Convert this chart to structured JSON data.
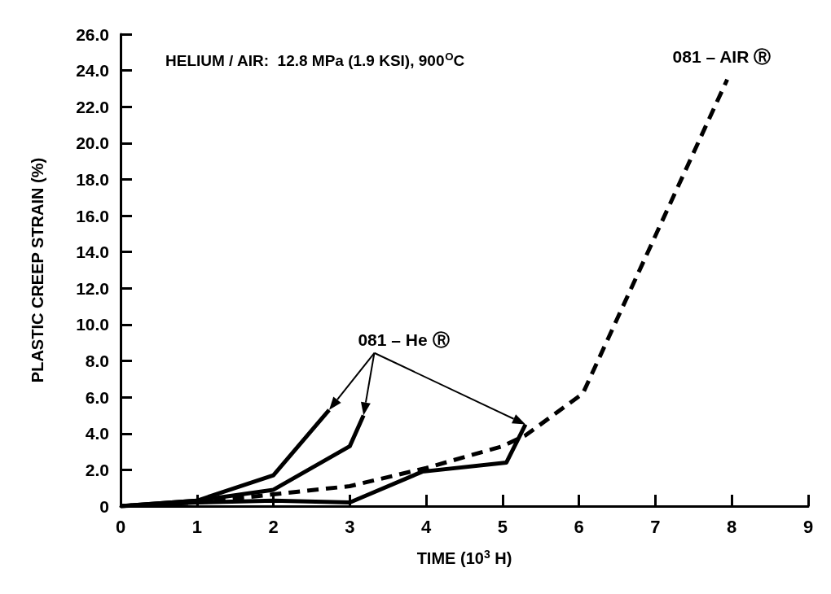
{
  "chart_data": {
    "type": "line",
    "title": "HELIUM / AIR:  12.8 MPa (1.9 KSI), 900$^{O}$C",
    "xlabel": "TIME (10$^{3}$ H)",
    "ylabel": "PLASTIC CREEP STRAIN (%)",
    "series": [
      {
        "color": "#000000",
        "line_style": "solid",
        "x": [
          0,
          1,
          2,
          2.73
        ],
        "values": [
          0,
          0.3,
          1.7,
          5.3
        ]
      },
      {
        "color": "#000000",
        "line_style": "solid",
        "x": [
          0,
          1,
          2,
          3,
          3.18
        ],
        "values": [
          0,
          0.3,
          0.9,
          3.3,
          5.0
        ]
      },
      {
        "color": "#000000",
        "line_style": "solid",
        "x": [
          0,
          1,
          2,
          3,
          3.95,
          5.05,
          5.3
        ],
        "values": [
          0,
          0.2,
          0.3,
          0.2,
          1.9,
          2.4,
          4.5
        ]
      },
      {
        "name": "081 – AIR Ⓡ",
        "color": "#000000",
        "line_style": "dashed",
        "x": [
          0,
          1,
          2,
          3,
          4,
          5,
          5.3,
          6.05,
          7.94
        ],
        "values": [
          0,
          0.2,
          0.65,
          1.1,
          2.1,
          3.3,
          3.9,
          6.2,
          23.5
        ]
      }
    ],
    "annotations": [
      "081 – He Ⓡ"
    ],
    "marker": "none",
    "grid": false,
    "legend": false,
    "xlim": [
      0,
      9
    ],
    "xticks": [
      0,
      1,
      2,
      3,
      4,
      5,
      6,
      7,
      8,
      9
    ],
    "ylim": [
      0,
      26
    ],
    "yticks": [
      0,
      {
        "value": 2,
        "label": "2.0"
      },
      {
        "value": 4,
        "label": "4.0"
      },
      {
        "value": 6,
        "label": "6.0"
      },
      {
        "value": 8,
        "label": "8.0"
      },
      {
        "value": 10,
        "label": "10.0"
      },
      {
        "value": 12,
        "label": "12.0"
      },
      {
        "value": 14,
        "label": "14.0"
      },
      {
        "value": 16,
        "label": "16.0"
      },
      {
        "value": 18,
        "label": "18.0"
      },
      {
        "value": 20,
        "label": "20.0"
      },
      {
        "value": 22,
        "label": "22.0"
      },
      {
        "value": 24,
        "label": "24.0"
      },
      {
        "value": 26,
        "label": "26.0"
      }
    ]
  }
}
